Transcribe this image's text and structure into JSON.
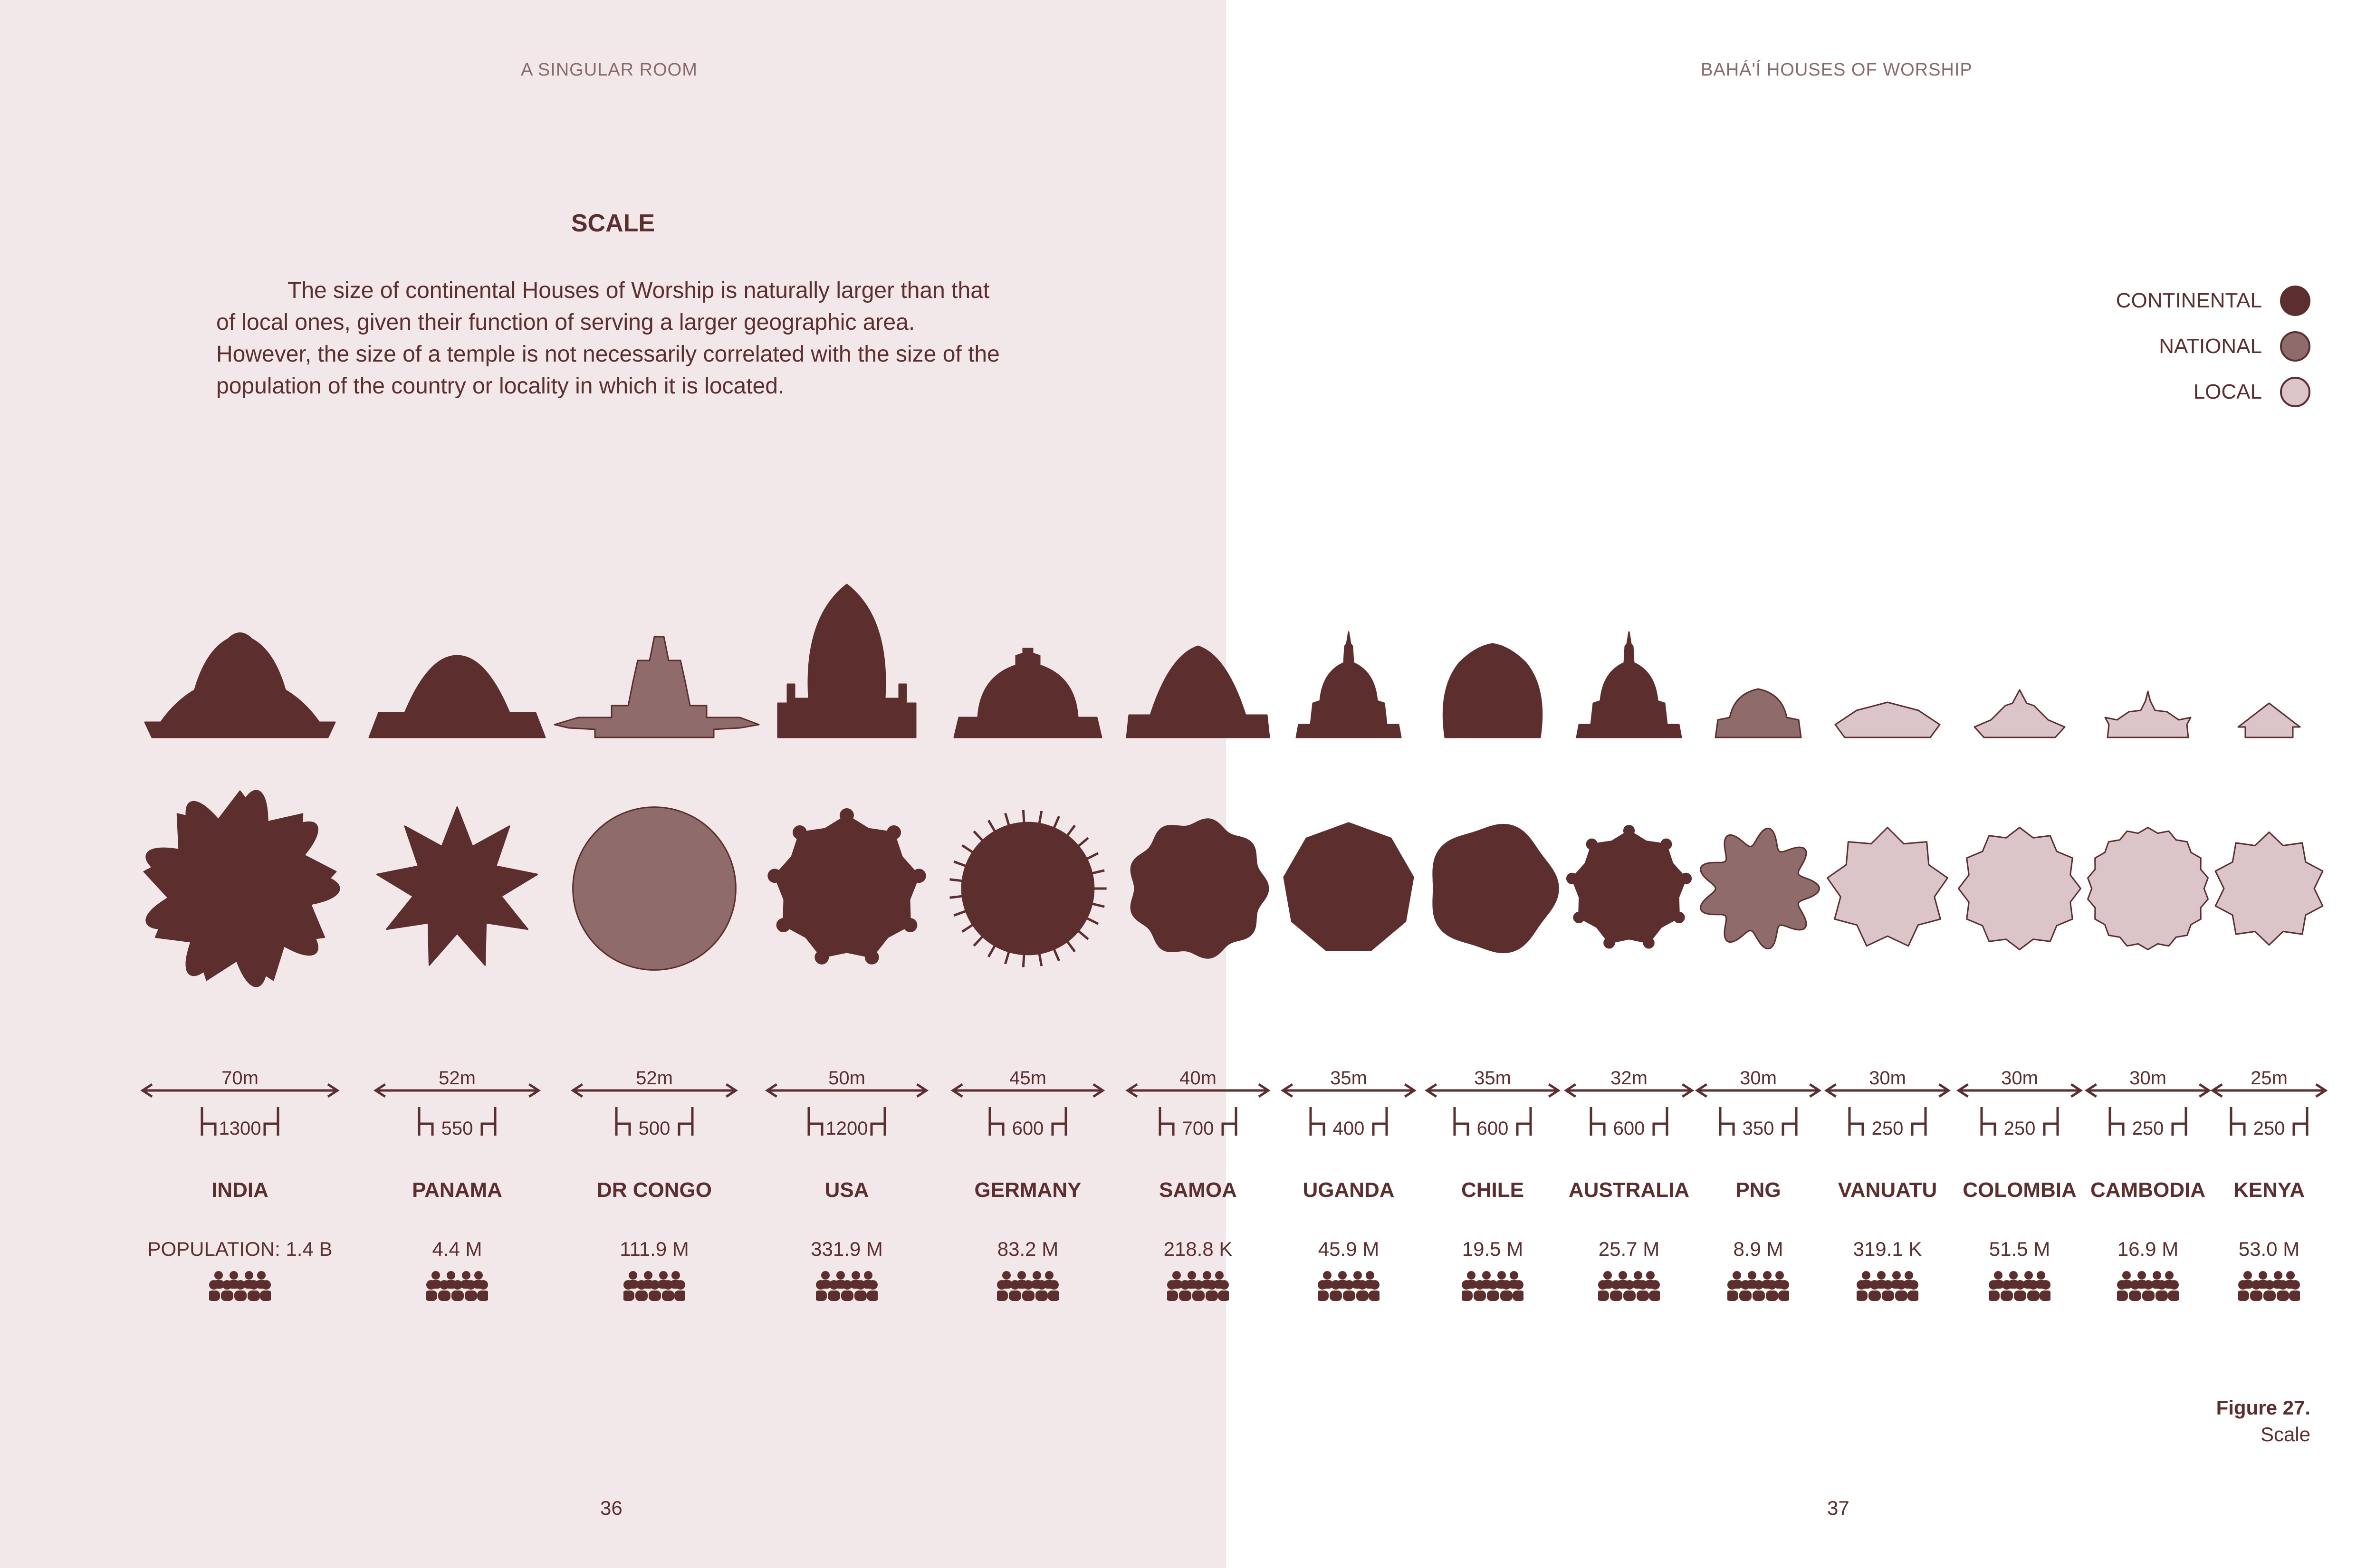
{
  "header": {
    "left": "A SINGULAR ROOM",
    "right": "BAHÁ'Í HOUSES OF WORSHIP"
  },
  "section": {
    "title": "SCALE",
    "text": "The size of continental Houses of Worship is naturally larger than that of local ones, given their function of serving a larger geographic area. However, the size of a temple is not necessarily correlated with the size of the population of the country or locality in which it is located."
  },
  "colors": {
    "continental": "#5c2e2e",
    "national": "#8f6b6b",
    "local": "#dcc5c8",
    "stroke": "#5c2e2e"
  },
  "legend": [
    {
      "label": "CONTINENTAL",
      "level": "continental"
    },
    {
      "label": "NATIONAL",
      "level": "national"
    },
    {
      "label": "LOCAL",
      "level": "local"
    }
  ],
  "temples": [
    {
      "country": "INDIA",
      "diameter": "70m",
      "seats": "1300",
      "population": "POPULATION: 1.4 B",
      "level": "continental",
      "elevation": "lotus",
      "plan": "lotus",
      "diameter_m": 70
    },
    {
      "country": "PANAMA",
      "diameter": "52m",
      "seats": "550",
      "population": "4.4 M",
      "level": "continental",
      "elevation": "dome-low",
      "plan": "star-deep",
      "diameter_m": 52
    },
    {
      "country": "DR CONGO",
      "diameter": "52m",
      "seats": "500",
      "population": "111.9 M",
      "level": "national",
      "elevation": "stepped",
      "plan": "circle",
      "diameter_m": 52
    },
    {
      "country": "USA",
      "diameter": "50m",
      "seats": "1200",
      "population": "331.9 M",
      "level": "continental",
      "elevation": "tall-dome",
      "plan": "knobbed",
      "diameter_m": 50
    },
    {
      "country": "GERMANY",
      "diameter": "45m",
      "seats": "600",
      "population": "83.2 M",
      "level": "continental",
      "elevation": "dome-lantern",
      "plan": "spiked",
      "diameter_m": 45
    },
    {
      "country": "SAMOA",
      "diameter": "40m",
      "seats": "700",
      "population": "218.8 K",
      "level": "continental",
      "elevation": "pointed-dome",
      "plan": "wavy",
      "diameter_m": 40
    },
    {
      "country": "UGANDA",
      "diameter": "35m",
      "seats": "400",
      "population": "45.9 M",
      "level": "continental",
      "elevation": "dome-drum",
      "plan": "polygon",
      "diameter_m": 35
    },
    {
      "country": "CHILE",
      "diameter": "35m",
      "seats": "600",
      "population": "19.5 M",
      "level": "continental",
      "elevation": "bulb",
      "plan": "blob",
      "diameter_m": 35
    },
    {
      "country": "AUSTRALIA",
      "diameter": "32m",
      "seats": "600",
      "population": "25.7 M",
      "level": "continental",
      "elevation": "dome-drum",
      "plan": "knobbed-small",
      "diameter_m": 32
    },
    {
      "country": "PNG",
      "diameter": "30m",
      "seats": "350",
      "population": "8.9 M",
      "level": "national",
      "elevation": "small-dome",
      "plan": "gear",
      "diameter_m": 30
    },
    {
      "country": "VANUATU",
      "diameter": "30m",
      "seats": "250",
      "population": "319.1 K",
      "level": "local",
      "elevation": "flat-roof",
      "plan": "star9",
      "diameter_m": 30
    },
    {
      "country": "COLOMBIA",
      "diameter": "30m",
      "seats": "250",
      "population": "51.5 M",
      "level": "local",
      "elevation": "peak",
      "plan": "star12",
      "diameter_m": 30
    },
    {
      "country": "CAMBODIA",
      "diameter": "30m",
      "seats": "250",
      "population": "16.9 M",
      "level": "local",
      "elevation": "spire-roof",
      "plan": "zigzag",
      "diameter_m": 30
    },
    {
      "country": "KENYA",
      "diameter": "25m",
      "seats": "250",
      "population": "53.0 M",
      "level": "local",
      "elevation": "gable",
      "plan": "star10",
      "diameter_m": 25
    }
  ],
  "figure": {
    "number": "Figure 27.",
    "caption": "Scale"
  },
  "pages": {
    "left": "36",
    "right": "37"
  }
}
